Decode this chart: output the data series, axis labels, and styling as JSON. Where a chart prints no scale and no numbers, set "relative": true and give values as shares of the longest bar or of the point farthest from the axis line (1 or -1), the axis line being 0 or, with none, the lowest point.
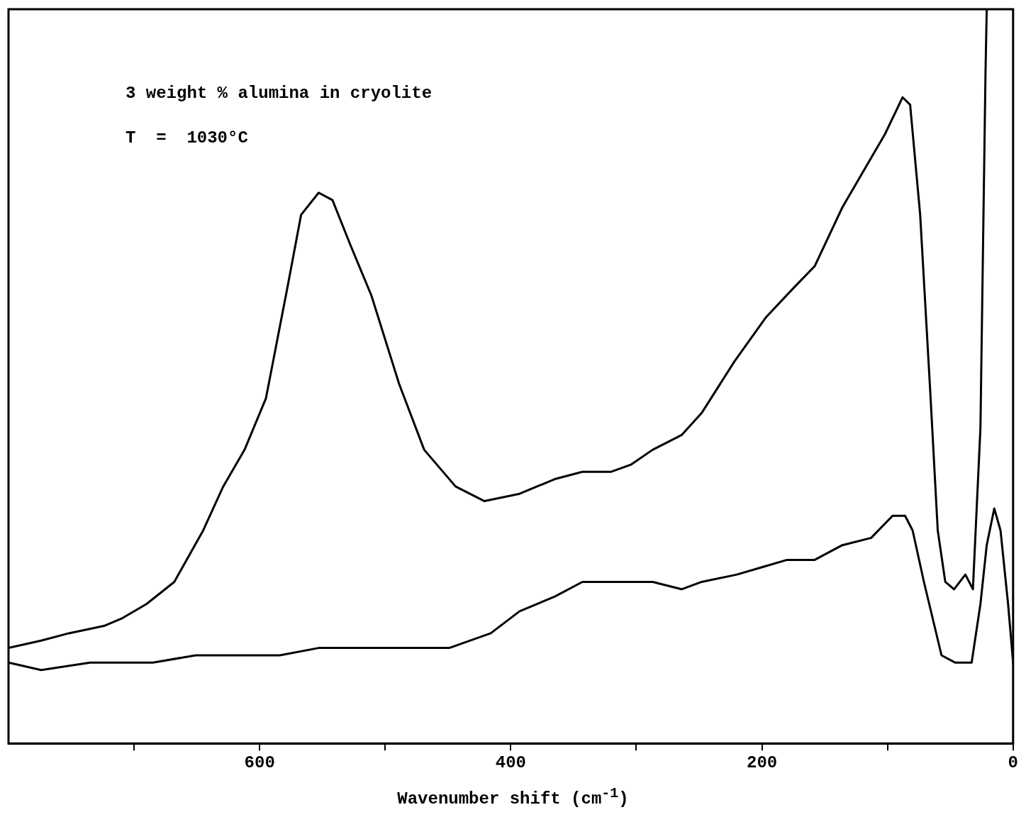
{
  "chart_data": {
    "type": "line",
    "xlabel": "Wavenumber shift  (cm$^{-1}$)",
    "annotations": [
      "3 weight % alumina in cryolite",
      "T  =  1030°C"
    ],
    "relative": true,
    "xlim": [
      800,
      0
    ],
    "xticks": [
      {
        "value": 700,
        "label": null
      },
      600,
      {
        "value": 500,
        "label": null
      },
      400,
      {
        "value": 300,
        "label": null
      },
      200,
      {
        "value": 100,
        "label": null
      },
      0
    ],
    "grid": false,
    "legend": false,
    "marker": "none",
    "line_style": "solid",
    "series": [
      {
        "color": "#000000",
        "x": [
          800,
          774,
          752,
          724,
          710,
          690,
          668,
          645,
          629,
          612,
          595,
          578,
          567,
          553,
          542,
          528,
          511,
          489,
          469,
          444,
          421,
          393,
          365,
          343,
          320,
          304,
          287,
          264,
          248,
          222,
          197,
          175,
          158,
          136,
          119,
          102,
          88,
          82,
          74,
          66,
          60,
          54,
          47,
          38,
          32,
          26,
          22,
          21
        ],
        "values": [
          0.13,
          0.14,
          0.15,
          0.16,
          0.17,
          0.19,
          0.22,
          0.29,
          0.35,
          0.4,
          0.47,
          0.62,
          0.72,
          0.75,
          0.74,
          0.68,
          0.61,
          0.49,
          0.4,
          0.35,
          0.33,
          0.34,
          0.36,
          0.37,
          0.37,
          0.38,
          0.4,
          0.42,
          0.45,
          0.52,
          0.58,
          0.62,
          0.65,
          0.73,
          0.78,
          0.83,
          0.88,
          0.87,
          0.72,
          0.48,
          0.29,
          0.22,
          0.21,
          0.23,
          0.21,
          0.43,
          0.91,
          1.0
        ]
      },
      {
        "color": "#000000",
        "x": [
          800,
          774,
          735,
          715,
          685,
          651,
          623,
          584,
          553,
          528,
          494,
          472,
          449,
          416,
          393,
          365,
          343,
          315,
          287,
          264,
          248,
          220,
          200,
          180,
          158,
          136,
          113,
          96,
          86,
          80,
          71,
          57,
          46,
          33,
          26,
          21,
          15,
          10,
          4,
          0
        ],
        "values": [
          0.11,
          0.1,
          0.11,
          0.11,
          0.11,
          0.12,
          0.12,
          0.12,
          0.13,
          0.13,
          0.13,
          0.13,
          0.13,
          0.15,
          0.18,
          0.2,
          0.22,
          0.22,
          0.22,
          0.21,
          0.22,
          0.23,
          0.24,
          0.25,
          0.25,
          0.27,
          0.28,
          0.31,
          0.31,
          0.29,
          0.22,
          0.12,
          0.11,
          0.11,
          0.19,
          0.27,
          0.32,
          0.29,
          0.19,
          0.11
        ]
      }
    ]
  }
}
